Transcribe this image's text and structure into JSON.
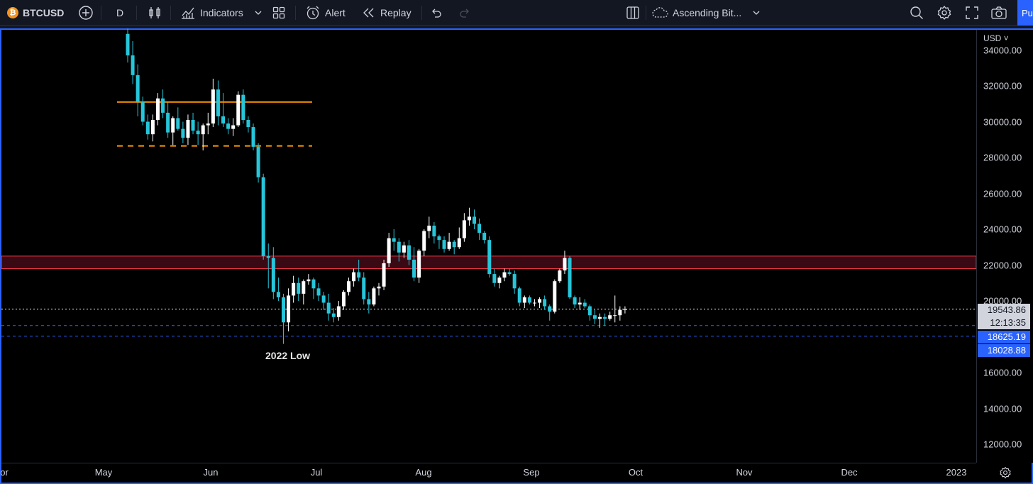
{
  "toolbar": {
    "symbol": "BTCUSD",
    "symbol_logo_glyph": "₿",
    "interval": "D",
    "indicators_label": "Indicators",
    "alert_label": "Alert",
    "replay_label": "Replay",
    "layout_name": "Ascending Bit...",
    "publish_label": "Pu",
    "icons": [
      "add-symbol-icon",
      "candles-icon",
      "indicators-icon",
      "chevron-down-icon",
      "templates-icon",
      "alert-icon",
      "replay-icon",
      "undo-icon",
      "redo-icon",
      "layout-icon",
      "cloud-icon",
      "search-icon",
      "settings-icon",
      "fullscreen-icon",
      "camera-icon"
    ]
  },
  "price_scale": {
    "currency": "USD",
    "labels": [
      "34000.00",
      "32000.00",
      "30000.00",
      "28000.00",
      "26000.00",
      "24000.00",
      "22000.00",
      "20000.00",
      "16000.00",
      "14000.00",
      "12000.00"
    ],
    "current_price": "19543.86",
    "countdown": "12:13:35",
    "line_tag_1": "18625.19",
    "line_tag_2": "18028.88",
    "tag_color": "#2962ff"
  },
  "time_scale": {
    "labels": [
      "or",
      "May",
      "Jun",
      "Jul",
      "Aug",
      "Sep",
      "Oct",
      "Nov",
      "Dec",
      "2023"
    ]
  },
  "annotations": {
    "low_label": "2022 Low"
  },
  "chart_data": {
    "type": "candlestick",
    "symbol": "BTCUSD",
    "interval": "D",
    "y_range": [
      11000,
      35000
    ],
    "colors": {
      "up": "#ffffff",
      "down": "#26c6da",
      "zone_border": "#f23645",
      "zone_fill": "#3a0a14",
      "level_orange": "#ff9800"
    },
    "zone": {
      "low": 21800,
      "high": 22500
    },
    "levels": [
      {
        "price": 31100,
        "style": "solid",
        "color": "#ff9800"
      },
      {
        "price": 28650,
        "style": "dashed",
        "color": "#ff9800"
      },
      {
        "price": 19543.86,
        "style": "dotted",
        "color": "#ffffff"
      },
      {
        "price": 18625.19,
        "style": "dashed",
        "color": "#2962ff"
      },
      {
        "price": 18028.88,
        "style": "dashed",
        "color": "#2962ff"
      }
    ],
    "candles": [
      [
        34900,
        35200,
        33300,
        33700
      ],
      [
        33700,
        34500,
        32100,
        32600
      ],
      [
        32600,
        33200,
        30300,
        31100
      ],
      [
        31100,
        31400,
        29800,
        30000
      ],
      [
        30000,
        30400,
        29000,
        29300
      ],
      [
        29300,
        30400,
        28900,
        30100
      ],
      [
        30100,
        31600,
        29800,
        31300
      ],
      [
        31300,
        31800,
        30200,
        30500
      ],
      [
        30500,
        31100,
        29100,
        29400
      ],
      [
        29400,
        30300,
        28700,
        30200
      ],
      [
        30200,
        30800,
        29500,
        29600
      ],
      [
        29600,
        30000,
        28800,
        29100
      ],
      [
        29100,
        30400,
        28700,
        30100
      ],
      [
        30100,
        30500,
        29300,
        29500
      ],
      [
        29500,
        30000,
        28700,
        29300
      ],
      [
        29300,
        29900,
        28400,
        29800
      ],
      [
        29800,
        30500,
        29300,
        29900
      ],
      [
        29900,
        32400,
        29700,
        31800
      ],
      [
        31800,
        32300,
        29800,
        30300
      ],
      [
        30300,
        31600,
        29700,
        29900
      ],
      [
        29900,
        30200,
        29300,
        29600
      ],
      [
        29600,
        30200,
        29200,
        29800
      ],
      [
        29800,
        31700,
        29700,
        31500
      ],
      [
        31500,
        31800,
        29900,
        30100
      ],
      [
        30100,
        30300,
        29400,
        29700
      ],
      [
        29700,
        29900,
        28400,
        28600
      ],
      [
        28600,
        28800,
        26600,
        26900
      ],
      [
        26900,
        27100,
        22300,
        22500
      ],
      [
        22500,
        23200,
        20700,
        22400
      ],
      [
        22400,
        23000,
        20100,
        20500
      ],
      [
        20500,
        21300,
        20000,
        20200
      ],
      [
        20200,
        20400,
        17600,
        18800
      ],
      [
        18800,
        20700,
        18300,
        20300
      ],
      [
        20300,
        21400,
        19900,
        21000
      ],
      [
        21000,
        21300,
        20000,
        20400
      ],
      [
        20400,
        21200,
        19800,
        21100
      ],
      [
        21100,
        21500,
        20900,
        21200
      ],
      [
        21200,
        21300,
        20100,
        20700
      ],
      [
        20700,
        21000,
        20000,
        20300
      ],
      [
        20300,
        20500,
        19500,
        19900
      ],
      [
        19900,
        20400,
        18900,
        19300
      ],
      [
        19300,
        19600,
        18800,
        19100
      ],
      [
        19100,
        20000,
        18900,
        19700
      ],
      [
        19700,
        20600,
        19500,
        20500
      ],
      [
        20500,
        21300,
        20300,
        21100
      ],
      [
        21100,
        21800,
        20800,
        21600
      ],
      [
        21600,
        22300,
        21100,
        21300
      ],
      [
        21300,
        21600,
        19800,
        20100
      ],
      [
        20100,
        20500,
        19300,
        19800
      ],
      [
        19800,
        20800,
        19700,
        20700
      ],
      [
        20700,
        21000,
        20300,
        20800
      ],
      [
        20800,
        22300,
        20600,
        22100
      ],
      [
        22100,
        23800,
        21900,
        23500
      ],
      [
        23500,
        24000,
        22800,
        23300
      ],
      [
        23300,
        23500,
        22200,
        22700
      ],
      [
        22700,
        23300,
        22400,
        23100
      ],
      [
        23100,
        23400,
        22000,
        22300
      ],
      [
        22300,
        23000,
        21100,
        21300
      ],
      [
        21300,
        22900,
        21000,
        22800
      ],
      [
        22800,
        24000,
        22500,
        23900
      ],
      [
        23900,
        24700,
        23500,
        24200
      ],
      [
        24200,
        24400,
        23200,
        23600
      ],
      [
        23600,
        23700,
        22900,
        23400
      ],
      [
        23400,
        23600,
        22700,
        22900
      ],
      [
        22900,
        23800,
        22800,
        23300
      ],
      [
        23300,
        23400,
        22600,
        23000
      ],
      [
        23000,
        24100,
        22900,
        23500
      ],
      [
        23500,
        24900,
        23300,
        24500
      ],
      [
        24500,
        25200,
        24200,
        24700
      ],
      [
        24700,
        25100,
        24000,
        24300
      ],
      [
        24300,
        24600,
        23400,
        23800
      ],
      [
        23800,
        23900,
        23200,
        23400
      ],
      [
        23400,
        23600,
        21300,
        21500
      ],
      [
        21500,
        21800,
        20800,
        21000
      ],
      [
        21000,
        21400,
        20700,
        21300
      ],
      [
        21300,
        21800,
        21100,
        21600
      ],
      [
        21600,
        21800,
        21400,
        21500
      ],
      [
        21500,
        21700,
        20400,
        20700
      ],
      [
        20700,
        20800,
        19700,
        19900
      ],
      [
        19900,
        20300,
        19600,
        20200
      ],
      [
        20200,
        20300,
        19800,
        19900
      ],
      [
        19900,
        20100,
        19700,
        19900
      ],
      [
        19900,
        20200,
        19600,
        20100
      ],
      [
        20100,
        20300,
        19500,
        19700
      ],
      [
        19700,
        19800,
        18900,
        19400
      ],
      [
        19400,
        21200,
        19300,
        21100
      ],
      [
        21100,
        21800,
        21000,
        21700
      ],
      [
        21700,
        22800,
        21500,
        22400
      ],
      [
        22400,
        22500,
        20100,
        20200
      ],
      [
        20200,
        20300,
        19600,
        19800
      ],
      [
        19800,
        20200,
        19500,
        19900
      ],
      [
        19900,
        20100,
        19600,
        19700
      ],
      [
        19700,
        19800,
        18900,
        19200
      ],
      [
        19200,
        19500,
        18700,
        19000
      ],
      [
        19000,
        19300,
        18500,
        19100
      ],
      [
        19100,
        19300,
        18600,
        19000
      ],
      [
        19000,
        19400,
        18900,
        19200
      ],
      [
        19200,
        20300,
        18800,
        19200
      ],
      [
        19200,
        19700,
        18900,
        19500
      ],
      [
        19500,
        19700,
        19300,
        19544
      ]
    ]
  }
}
